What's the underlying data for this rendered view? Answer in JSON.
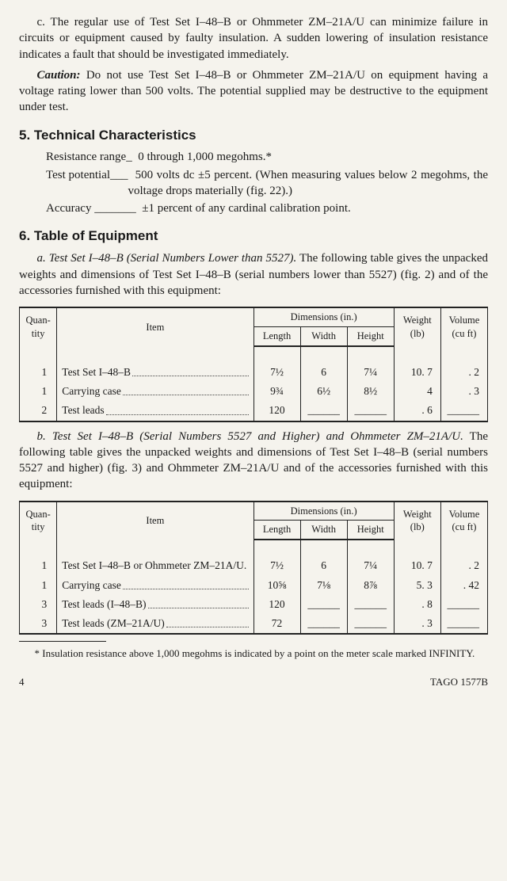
{
  "para_c": "c. The regular use of Test Set I–48–B or Ohmmeter ZM–21A/U can minimize failure in circuits or equipment caused by faulty insulation. A sudden lowering of insulation resistance indicates a fault that should be investigated immediately.",
  "caution_label": "Caution:",
  "caution_text": " Do not use Test Set I–48–B or Ohmmeter ZM–21A/U on equipment having a voltage rating lower than 500 volts. The potential supplied may be destructive to the equipment under test.",
  "section5": {
    "heading": "5.  Technical Characteristics",
    "specs": [
      {
        "label": "Resistance range_",
        "value": "0 through 1,000 megohms.*"
      },
      {
        "label": "Test potential___",
        "value": "500 volts dc ±5 percent.  (When measuring values below 2 megohms, the voltage drops materially (fig. 22).)"
      },
      {
        "label": "Accuracy _______",
        "value": "±1 percent of any cardinal calibration point."
      }
    ]
  },
  "section6": {
    "heading": "6.  Table of Equipment",
    "sub_a": {
      "label": "a. Test Set I–48–B",
      "paren": " (Serial Numbers Lower than 5527).",
      "text": "  The following table gives the unpacked weights and dimensions of Test Set I–48–B (serial numbers lower than 5527) (fig. 2) and of the accessories furnished with this equipment:"
    },
    "sub_b": {
      "label": "b. Test Set I–48–B",
      "paren": " (Serial Numbers 5527 and Higher) and Ohmmeter ZM–21A/U.",
      "text": " The following table gives the unpacked weights and dimensions of Test Set I–48–B (serial numbers 5527 and higher) (fig. 3) and Ohmmeter ZM–21A/U and of the accessories furnished with this equipment:"
    }
  },
  "table_headers": {
    "qty": "Quan-\ntity",
    "item": "Item",
    "dims": "Dimensions (in.)",
    "length": "Length",
    "width": "Width",
    "height": "Height",
    "weight": "Weight\n(lb)",
    "volume": "Volume\n(cu ft)"
  },
  "table_a": {
    "rows": [
      {
        "qty": "1",
        "item": "Test Set I–48–B",
        "dots": true,
        "length": "7½",
        "width": "6",
        "height": "7¼",
        "weight": "10. 7",
        "volume": ". 2"
      },
      {
        "qty": "1",
        "item": "Carrying case",
        "dots": true,
        "length": "9¾",
        "width": "6½",
        "height": "8½",
        "weight": "4",
        "volume": ". 3"
      },
      {
        "qty": "2",
        "item": "Test leads",
        "dots": true,
        "length": "120",
        "width": "______",
        "height": "______",
        "weight": ". 6",
        "volume": "______"
      }
    ]
  },
  "table_b": {
    "rows": [
      {
        "qty": "1",
        "item": "Test Set I–48–B or Ohmmeter ZM–21A/U.",
        "dots": false,
        "length": "7½",
        "width": "6",
        "height": "7¼",
        "weight": "10. 7",
        "volume": ". 2"
      },
      {
        "qty": "1",
        "item": "Carrying case",
        "dots": true,
        "length": "10⅝",
        "width": "7⅛",
        "height": "8⅞",
        "weight": "5. 3",
        "volume": ". 42"
      },
      {
        "qty": "3",
        "item": "Test leads (I–48–B)",
        "dots": true,
        "length": "120",
        "width": "______",
        "height": "______",
        "weight": ". 8",
        "volume": "______"
      },
      {
        "qty": "3",
        "item": "Test leads (ZM–21A/U)",
        "dots": true,
        "length": "72",
        "width": "______",
        "height": "______",
        "weight": ". 3",
        "volume": "______"
      }
    ]
  },
  "footnote": "* Insulation resistance above 1,000 megohms is indicated by a point on the meter scale marked INFINITY.",
  "page_num": "4",
  "doc_ref": "TAGO 1577B"
}
